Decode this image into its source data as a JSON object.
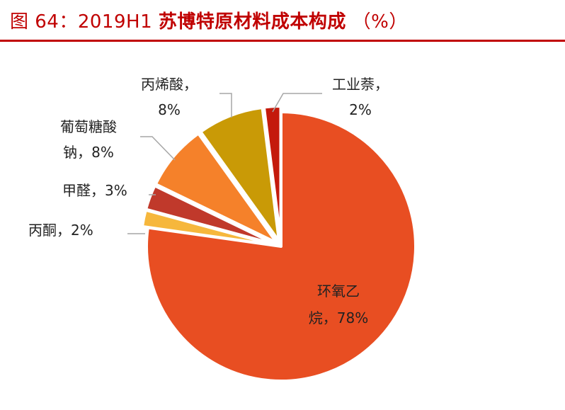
{
  "header": {
    "figure_number": "图 64：2019H1",
    "title_main": "苏博特原材料成本构成",
    "title_unit": "（%）"
  },
  "chart_data": {
    "type": "pie",
    "title": "苏博特原材料成本构成（%）",
    "slices": [
      {
        "label_line1": "环氧乙",
        "label_line2": "烷，78%",
        "name": "环氧乙烷",
        "value": 78,
        "color": "#e84e22"
      },
      {
        "label_line1": "丙酮，2%",
        "label_line2": "",
        "name": "丙酮",
        "value": 2,
        "color": "#f6b73c"
      },
      {
        "label_line1": "甲醛，3%",
        "label_line2": "",
        "name": "甲醛",
        "value": 3,
        "color": "#c0392b"
      },
      {
        "label_line1": "葡萄糖酸",
        "label_line2": "钠，8%",
        "name": "葡萄糖酸钠",
        "value": 8,
        "color": "#f5812a"
      },
      {
        "label_line1": "丙烯酸，",
        "label_line2": "8%",
        "name": "丙烯酸",
        "value": 8,
        "color": "#c99a06"
      },
      {
        "label_line1": "工业萘，",
        "label_line2": "2%",
        "name": "工业萘",
        "value": 2,
        "color": "#c41a0c"
      }
    ]
  }
}
